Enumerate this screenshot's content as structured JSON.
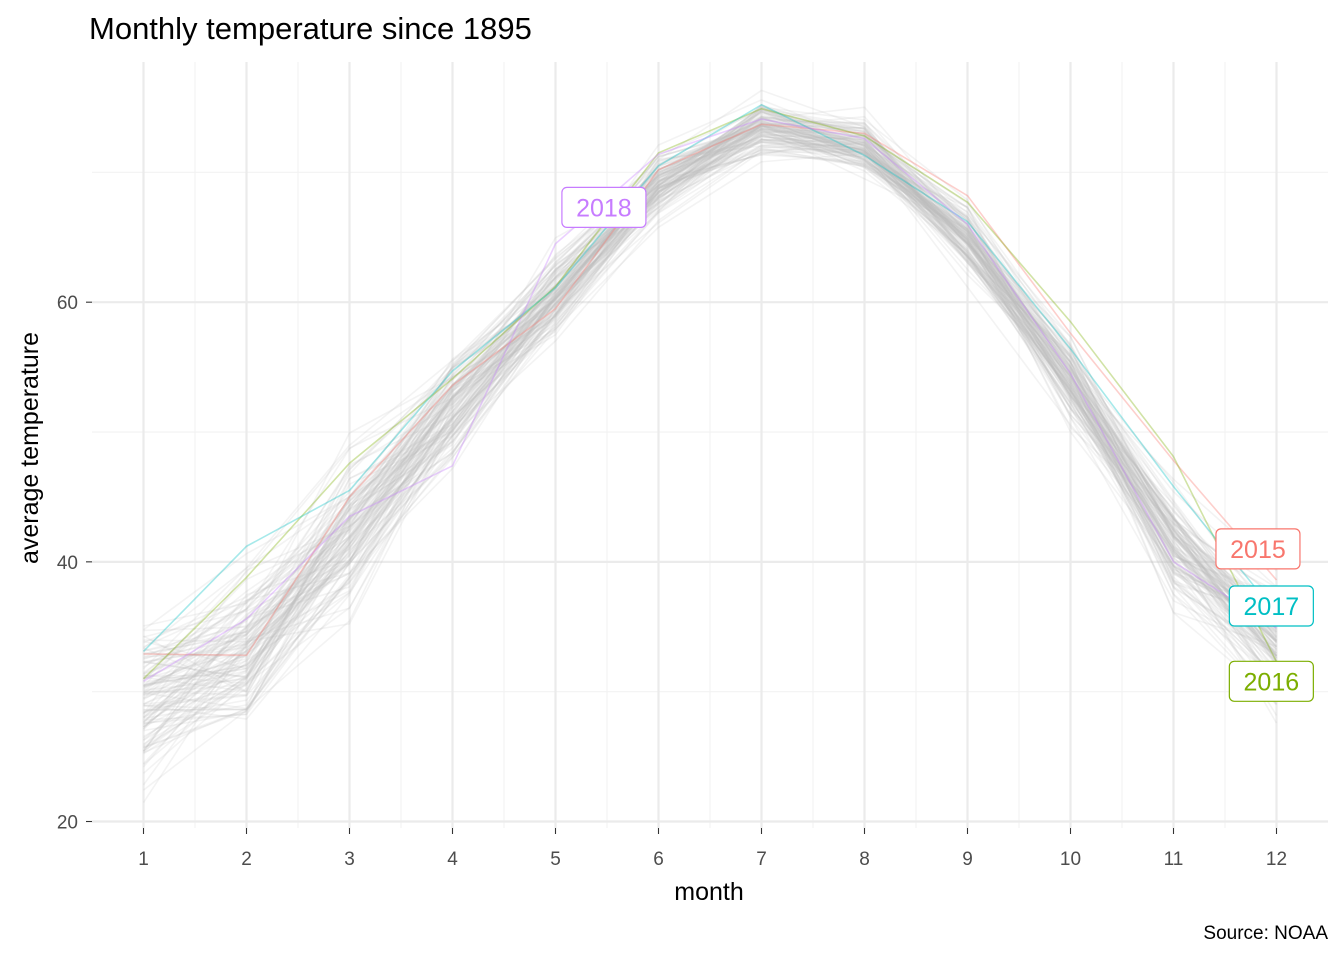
{
  "chart_data": {
    "type": "line",
    "title": "Monthly temperature since 1895",
    "xlabel": "month",
    "ylabel": "average temperature",
    "caption": "Source: NOAA",
    "x": [
      1,
      2,
      3,
      4,
      5,
      6,
      7,
      8,
      9,
      10,
      11,
      12
    ],
    "x_ticks": [
      "1",
      "2",
      "3",
      "4",
      "5",
      "6",
      "7",
      "8",
      "9",
      "10",
      "11",
      "12"
    ],
    "y_ticks": [
      "20",
      "40",
      "60"
    ],
    "xlim": [
      0.5,
      12.5
    ],
    "ylim": [
      19.5,
      78.5
    ],
    "grid": true,
    "background_years": {
      "count": 120,
      "color": "#bfbfbf",
      "mean": [
        30.2,
        33.2,
        42.4,
        51.6,
        60.6,
        69.0,
        73.6,
        72.0,
        65.0,
        53.8,
        41.6,
        33.4
      ],
      "spread": [
        3.5,
        3.2,
        3.0,
        2.4,
        1.9,
        1.4,
        1.2,
        1.2,
        1.5,
        1.9,
        2.3,
        2.6
      ]
    },
    "series": [
      {
        "name": "2015",
        "color": "#F8766D",
        "values": [
          32.9,
          32.8,
          45.0,
          53.6,
          59.5,
          70.2,
          73.7,
          73.0,
          68.2,
          57.6,
          47.8,
          38.6
        ]
      },
      {
        "name": "2016",
        "color": "#7CAE00",
        "values": [
          31.0,
          38.8,
          47.6,
          54.1,
          61.2,
          71.5,
          74.9,
          72.8,
          67.7,
          58.5,
          48.1,
          32.3
        ]
      },
      {
        "name": "2017",
        "color": "#00BFC4",
        "values": [
          33.1,
          41.2,
          45.5,
          54.7,
          61.1,
          70.5,
          75.2,
          71.3,
          66.2,
          56.4,
          45.8,
          36.0
        ]
      },
      {
        "name": "2018",
        "color": "#C77CFF",
        "values": [
          30.8,
          35.6,
          43.5,
          47.4,
          64.5,
          71.4,
          74.1,
          72.6,
          66.0,
          54.5,
          40.0,
          34.9
        ]
      }
    ],
    "annotations": [
      {
        "text": "2018",
        "color": "#C77CFF",
        "x": 5.47,
        "y": 67.3
      },
      {
        "text": "2015",
        "color": "#F8766D",
        "x": 11.82,
        "y": 41.0
      },
      {
        "text": "2017",
        "color": "#00BFC4",
        "x": 11.95,
        "y": 36.6
      },
      {
        "text": "2016",
        "color": "#7CAE00",
        "x": 11.95,
        "y": 30.8
      }
    ]
  }
}
